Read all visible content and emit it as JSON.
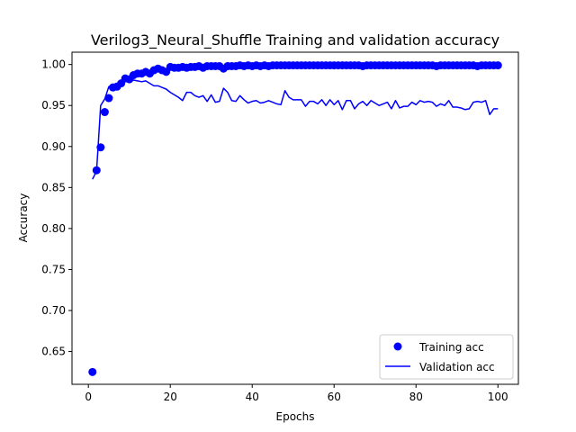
{
  "chart_data": {
    "type": "line",
    "title": "Verilog3_Neural_Shuffle Training and validation accuracy",
    "xlabel": "Epochs",
    "ylabel": "Accuracy",
    "xlim": [
      -4,
      105
    ],
    "ylim": [
      0.61,
      1.015
    ],
    "xticks": [
      0,
      20,
      40,
      60,
      80,
      100
    ],
    "yticks": [
      0.65,
      0.7,
      0.75,
      0.8,
      0.85,
      0.9,
      0.95,
      1.0
    ],
    "ytick_labels": [
      "0.65",
      "0.70",
      "0.75",
      "0.80",
      "0.85",
      "0.90",
      "0.95",
      "1.00"
    ],
    "legend_position": "lower-right",
    "grid": false,
    "colors": {
      "series": "#0000ff",
      "axis": "#000000"
    },
    "series": [
      {
        "name": "Training acc",
        "style": "markers",
        "x": [
          1,
          2,
          3,
          4,
          5,
          6,
          7,
          8,
          9,
          10,
          11,
          12,
          13,
          14,
          15,
          16,
          17,
          18,
          19,
          20,
          21,
          22,
          23,
          24,
          25,
          26,
          27,
          28,
          29,
          30,
          31,
          32,
          33,
          34,
          35,
          36,
          37,
          38,
          39,
          40,
          41,
          42,
          43,
          44,
          45,
          46,
          47,
          48,
          49,
          50,
          51,
          52,
          53,
          54,
          55,
          56,
          57,
          58,
          59,
          60,
          61,
          62,
          63,
          64,
          65,
          66,
          67,
          68,
          69,
          70,
          71,
          72,
          73,
          74,
          75,
          76,
          77,
          78,
          79,
          80,
          81,
          82,
          83,
          84,
          85,
          86,
          87,
          88,
          89,
          90,
          91,
          92,
          93,
          94,
          95,
          96,
          97,
          98,
          99,
          100
        ],
        "y": [
          0.625,
          0.871,
          0.899,
          0.942,
          0.959,
          0.972,
          0.973,
          0.977,
          0.983,
          0.982,
          0.987,
          0.989,
          0.989,
          0.991,
          0.989,
          0.993,
          0.995,
          0.993,
          0.991,
          0.997,
          0.996,
          0.996,
          0.997,
          0.996,
          0.997,
          0.997,
          0.998,
          0.996,
          0.998,
          0.998,
          0.998,
          0.998,
          0.995,
          0.998,
          0.998,
          0.998,
          0.999,
          0.998,
          0.999,
          0.998,
          0.999,
          0.998,
          0.999,
          0.998,
          0.999,
          0.999,
          0.999,
          0.999,
          0.999,
          0.999,
          0.999,
          0.999,
          0.999,
          0.999,
          0.999,
          0.999,
          0.999,
          0.999,
          0.999,
          0.999,
          0.999,
          0.999,
          0.999,
          0.999,
          0.999,
          0.999,
          0.998,
          0.999,
          0.999,
          0.999,
          0.999,
          0.999,
          0.999,
          0.999,
          0.999,
          0.999,
          0.999,
          0.999,
          0.999,
          0.999,
          0.999,
          0.999,
          0.999,
          0.999,
          0.998,
          0.999,
          0.999,
          0.999,
          0.999,
          0.999,
          0.999,
          0.999,
          0.999,
          0.999,
          0.998,
          0.999,
          0.999,
          0.999,
          0.999,
          0.999
        ]
      },
      {
        "name": "Validation acc",
        "style": "line",
        "x": [
          1,
          2,
          3,
          4,
          5,
          6,
          7,
          8,
          9,
          10,
          11,
          12,
          13,
          14,
          15,
          16,
          17,
          18,
          19,
          20,
          21,
          22,
          23,
          24,
          25,
          26,
          27,
          28,
          29,
          30,
          31,
          32,
          33,
          34,
          35,
          36,
          37,
          38,
          39,
          40,
          41,
          42,
          43,
          44,
          45,
          46,
          47,
          48,
          49,
          50,
          51,
          52,
          53,
          54,
          55,
          56,
          57,
          58,
          59,
          60,
          61,
          62,
          63,
          64,
          65,
          66,
          67,
          68,
          69,
          70,
          71,
          72,
          73,
          74,
          75,
          76,
          77,
          78,
          79,
          80,
          81,
          82,
          83,
          84,
          85,
          86,
          87,
          88,
          89,
          90,
          91,
          92,
          93,
          94,
          95,
          96,
          97,
          98,
          99,
          100
        ],
        "y": [
          0.86,
          0.87,
          0.95,
          0.958,
          0.973,
          0.975,
          0.976,
          0.978,
          0.979,
          0.98,
          0.981,
          0.98,
          0.979,
          0.98,
          0.977,
          0.974,
          0.974,
          0.972,
          0.97,
          0.966,
          0.963,
          0.96,
          0.956,
          0.966,
          0.966,
          0.962,
          0.96,
          0.962,
          0.955,
          0.963,
          0.954,
          0.955,
          0.971,
          0.966,
          0.956,
          0.955,
          0.962,
          0.957,
          0.953,
          0.955,
          0.956,
          0.953,
          0.954,
          0.956,
          0.954,
          0.952,
          0.951,
          0.968,
          0.96,
          0.957,
          0.957,
          0.957,
          0.949,
          0.955,
          0.955,
          0.952,
          0.957,
          0.95,
          0.957,
          0.951,
          0.956,
          0.945,
          0.956,
          0.956,
          0.946,
          0.952,
          0.955,
          0.95,
          0.956,
          0.953,
          0.95,
          0.952,
          0.954,
          0.946,
          0.956,
          0.947,
          0.949,
          0.949,
          0.954,
          0.951,
          0.956,
          0.954,
          0.955,
          0.954,
          0.949,
          0.952,
          0.95,
          0.956,
          0.948,
          0.948,
          0.947,
          0.945,
          0.946,
          0.954,
          0.955,
          0.954,
          0.956,
          0.939,
          0.946,
          0.946
        ]
      }
    ]
  }
}
